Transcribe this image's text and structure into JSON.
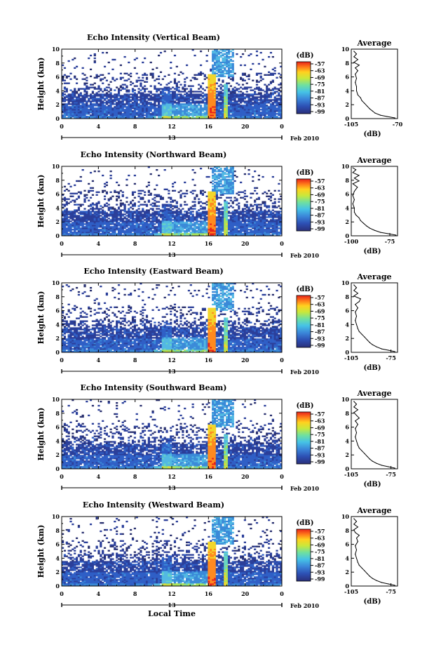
{
  "figure": {
    "xlabel": "Local Time"
  },
  "chart_data": [
    {
      "type": "heatmap",
      "title": "Echo Intensity (Vertical Beam)",
      "ylabel": "Height (km)",
      "x_ticks": [
        "0",
        "4",
        "8",
        "12",
        "16",
        "20",
        "0"
      ],
      "xlim": [
        0,
        24
      ],
      "y_ticks": [
        "0",
        "2",
        "4",
        "6",
        "8",
        "10"
      ],
      "ylim": [
        0,
        10
      ],
      "date_tick": "13",
      "date_label": "Feb 2010",
      "colorbar": {
        "unit": "(dB)",
        "labels": [
          "-57",
          "-63",
          "-69",
          "-75",
          "-81",
          "-87",
          "-93",
          "-99"
        ]
      },
      "profile": {
        "title": "Average",
        "x_ticks": [
          "-105",
          "-70"
        ],
        "xlim": [
          -105,
          -70
        ],
        "xlabel": "(dB)",
        "y_ticks": [
          "0",
          "2",
          "4",
          "6",
          "8",
          "10"
        ],
        "ylim": [
          0,
          10
        ],
        "points": [
          {
            "x": -72,
            "y": 0.1
          },
          {
            "x": -78,
            "y": 0.3
          },
          {
            "x": -83,
            "y": 0.5
          },
          {
            "x": -87,
            "y": 0.8
          },
          {
            "x": -89,
            "y": 1.1
          },
          {
            "x": -91,
            "y": 1.4
          },
          {
            "x": -93,
            "y": 1.8
          },
          {
            "x": -95,
            "y": 2.2
          },
          {
            "x": -97,
            "y": 2.6
          },
          {
            "x": -98,
            "y": 3.0
          },
          {
            "x": -100,
            "y": 3.4
          },
          {
            "x": -101,
            "y": 4.0
          },
          {
            "x": -101,
            "y": 4.6
          },
          {
            "x": -102,
            "y": 5.2
          },
          {
            "x": -101,
            "y": 5.8
          },
          {
            "x": -102,
            "y": 6.4
          },
          {
            "x": -100,
            "y": 6.9
          },
          {
            "x": -102,
            "y": 7.3
          },
          {
            "x": -99,
            "y": 7.7
          },
          {
            "x": -103,
            "y": 8.1
          },
          {
            "x": -100,
            "y": 8.5
          },
          {
            "x": -103,
            "y": 8.9
          },
          {
            "x": -101,
            "y": 9.3
          },
          {
            "x": -103,
            "y": 9.7
          }
        ]
      }
    },
    {
      "type": "heatmap",
      "title": "Echo Intensity (Northward Beam)",
      "ylabel": "Height (km)",
      "x_ticks": [
        "0",
        "4",
        "8",
        "12",
        "16",
        "20",
        "0"
      ],
      "xlim": [
        0,
        24
      ],
      "y_ticks": [
        "0",
        "2",
        "4",
        "6",
        "8",
        "10"
      ],
      "ylim": [
        0,
        10
      ],
      "date_tick": "13",
      "date_label": "Feb 2010",
      "colorbar": {
        "unit": "(dB)",
        "labels": [
          "-57",
          "-63",
          "-69",
          "-75",
          "-81",
          "-87",
          "-93",
          "-99"
        ]
      },
      "profile": {
        "title": "Average",
        "x_ticks": [
          "-100",
          "-75"
        ],
        "xlim": [
          -100,
          -70
        ],
        "xlabel": "(dB)",
        "y_ticks": [
          "0",
          "2",
          "4",
          "6",
          "8",
          "10"
        ],
        "ylim": [
          0,
          10
        ],
        "points": [
          {
            "x": -71,
            "y": 0.1
          },
          {
            "x": -76,
            "y": 0.3
          },
          {
            "x": -81,
            "y": 0.5
          },
          {
            "x": -85,
            "y": 0.8
          },
          {
            "x": -88,
            "y": 1.1
          },
          {
            "x": -90,
            "y": 1.4
          },
          {
            "x": -92,
            "y": 1.8
          },
          {
            "x": -94,
            "y": 2.2
          },
          {
            "x": -95,
            "y": 2.6
          },
          {
            "x": -97,
            "y": 3.0
          },
          {
            "x": -98,
            "y": 3.4
          },
          {
            "x": -98,
            "y": 4.0
          },
          {
            "x": -99,
            "y": 4.6
          },
          {
            "x": -98,
            "y": 5.2
          },
          {
            "x": -99,
            "y": 5.8
          },
          {
            "x": -98,
            "y": 6.4
          },
          {
            "x": -96,
            "y": 7.0
          },
          {
            "x": -99,
            "y": 7.5
          },
          {
            "x": -95,
            "y": 7.9
          },
          {
            "x": -98,
            "y": 8.3
          },
          {
            "x": -95,
            "y": 8.7
          },
          {
            "x": -99,
            "y": 9.1
          },
          {
            "x": -97,
            "y": 9.5
          },
          {
            "x": -99,
            "y": 9.8
          }
        ]
      }
    },
    {
      "type": "heatmap",
      "title": "Echo Intensity (Eastward Beam)",
      "ylabel": "Height (km)",
      "x_ticks": [
        "0",
        "4",
        "8",
        "12",
        "16",
        "20",
        "0"
      ],
      "xlim": [
        0,
        24
      ],
      "y_ticks": [
        "0",
        "2",
        "4",
        "6",
        "8",
        "10"
      ],
      "ylim": [
        0,
        10
      ],
      "date_tick": "13",
      "date_label": "Feb 2010",
      "colorbar": {
        "unit": "(dB)",
        "labels": [
          "-57",
          "-63",
          "-69",
          "-75",
          "-81",
          "-87",
          "-93",
          "-99"
        ]
      },
      "profile": {
        "title": "Average",
        "x_ticks": [
          "-105",
          "-75"
        ],
        "xlim": [
          -105,
          -70
        ],
        "xlabel": "(dB)",
        "y_ticks": [
          "0",
          "2",
          "4",
          "6",
          "8",
          "10"
        ],
        "ylim": [
          0,
          10
        ],
        "points": [
          {
            "x": -72,
            "y": 0.1
          },
          {
            "x": -77,
            "y": 0.3
          },
          {
            "x": -82,
            "y": 0.5
          },
          {
            "x": -86,
            "y": 0.8
          },
          {
            "x": -89,
            "y": 1.1
          },
          {
            "x": -91,
            "y": 1.4
          },
          {
            "x": -93,
            "y": 1.8
          },
          {
            "x": -95,
            "y": 2.2
          },
          {
            "x": -97,
            "y": 2.6
          },
          {
            "x": -99,
            "y": 3.0
          },
          {
            "x": -100,
            "y": 3.4
          },
          {
            "x": -101,
            "y": 4.0
          },
          {
            "x": -102,
            "y": 4.6
          },
          {
            "x": -101,
            "y": 5.2
          },
          {
            "x": -102,
            "y": 5.8
          },
          {
            "x": -100,
            "y": 6.4
          },
          {
            "x": -102,
            "y": 6.9
          },
          {
            "x": -99,
            "y": 7.3
          },
          {
            "x": -98,
            "y": 7.7
          },
          {
            "x": -103,
            "y": 8.1
          },
          {
            "x": -100,
            "y": 8.5
          },
          {
            "x": -103,
            "y": 8.9
          },
          {
            "x": -101,
            "y": 9.3
          },
          {
            "x": -103,
            "y": 9.7
          }
        ]
      }
    },
    {
      "type": "heatmap",
      "title": "Echo Intensity (Southward Beam)",
      "ylabel": "Height (km)",
      "x_ticks": [
        "0",
        "4",
        "8",
        "12",
        "16",
        "20",
        "0"
      ],
      "xlim": [
        0,
        24
      ],
      "y_ticks": [
        "0",
        "2",
        "4",
        "6",
        "8",
        "10"
      ],
      "ylim": [
        0,
        10
      ],
      "date_tick": "13",
      "date_label": "Feb 2010",
      "colorbar": {
        "unit": "(dB)",
        "labels": [
          "-57",
          "-63",
          "-69",
          "-75",
          "-81",
          "-87",
          "-93",
          "-99"
        ]
      },
      "profile": {
        "title": "Average",
        "x_ticks": [
          "-105",
          "-75"
        ],
        "xlim": [
          -105,
          -70
        ],
        "xlabel": "(dB)",
        "y_ticks": [
          "0",
          "2",
          "4",
          "6",
          "8",
          "10"
        ],
        "ylim": [
          0,
          10
        ],
        "points": [
          {
            "x": -72,
            "y": 0.1
          },
          {
            "x": -77,
            "y": 0.3
          },
          {
            "x": -82,
            "y": 0.5
          },
          {
            "x": -86,
            "y": 0.8
          },
          {
            "x": -89,
            "y": 1.1
          },
          {
            "x": -91,
            "y": 1.4
          },
          {
            "x": -93,
            "y": 1.8
          },
          {
            "x": -95,
            "y": 2.2
          },
          {
            "x": -97,
            "y": 2.6
          },
          {
            "x": -99,
            "y": 3.0
          },
          {
            "x": -100,
            "y": 3.4
          },
          {
            "x": -101,
            "y": 4.0
          },
          {
            "x": -102,
            "y": 4.6
          },
          {
            "x": -101,
            "y": 5.2
          },
          {
            "x": -102,
            "y": 5.8
          },
          {
            "x": -100,
            "y": 6.4
          },
          {
            "x": -102,
            "y": 6.9
          },
          {
            "x": -99,
            "y": 7.3
          },
          {
            "x": -101,
            "y": 7.7
          },
          {
            "x": -103,
            "y": 8.1
          },
          {
            "x": -100,
            "y": 8.5
          },
          {
            "x": -103,
            "y": 8.9
          },
          {
            "x": -101,
            "y": 9.3
          },
          {
            "x": -103,
            "y": 9.7
          }
        ]
      }
    },
    {
      "type": "heatmap",
      "title": "Echo Intensity (Westward Beam)",
      "ylabel": "Height (km)",
      "x_ticks": [
        "0",
        "4",
        "8",
        "12",
        "16",
        "20",
        "0"
      ],
      "xlim": [
        0,
        24
      ],
      "y_ticks": [
        "0",
        "2",
        "4",
        "6",
        "8",
        "10"
      ],
      "ylim": [
        0,
        10
      ],
      "date_tick": "13",
      "date_label": "Feb 2010",
      "colorbar": {
        "unit": "(dB)",
        "labels": [
          "-57",
          "-63",
          "-69",
          "-75",
          "-81",
          "-87",
          "-93",
          "-99"
        ]
      },
      "profile": {
        "title": "Average",
        "x_ticks": [
          "-105",
          "-75"
        ],
        "xlim": [
          -105,
          -70
        ],
        "xlabel": "(dB)",
        "y_ticks": [
          "0",
          "2",
          "4",
          "6",
          "8",
          "10"
        ],
        "ylim": [
          0,
          10
        ],
        "points": [
          {
            "x": -72,
            "y": 0.1
          },
          {
            "x": -77,
            "y": 0.3
          },
          {
            "x": -82,
            "y": 0.5
          },
          {
            "x": -86,
            "y": 0.8
          },
          {
            "x": -89,
            "y": 1.1
          },
          {
            "x": -91,
            "y": 1.4
          },
          {
            "x": -93,
            "y": 1.8
          },
          {
            "x": -95,
            "y": 2.2
          },
          {
            "x": -97,
            "y": 2.6
          },
          {
            "x": -99,
            "y": 3.0
          },
          {
            "x": -100,
            "y": 3.4
          },
          {
            "x": -101,
            "y": 4.0
          },
          {
            "x": -102,
            "y": 4.6
          },
          {
            "x": -101,
            "y": 5.2
          },
          {
            "x": -102,
            "y": 5.8
          },
          {
            "x": -100,
            "y": 6.4
          },
          {
            "x": -101,
            "y": 6.9
          },
          {
            "x": -99,
            "y": 7.3
          },
          {
            "x": -102,
            "y": 7.7
          },
          {
            "x": -103,
            "y": 8.1
          },
          {
            "x": -100,
            "y": 8.5
          },
          {
            "x": -103,
            "y": 8.9
          },
          {
            "x": -101,
            "y": 9.3
          },
          {
            "x": -103,
            "y": 9.7
          }
        ]
      }
    }
  ]
}
